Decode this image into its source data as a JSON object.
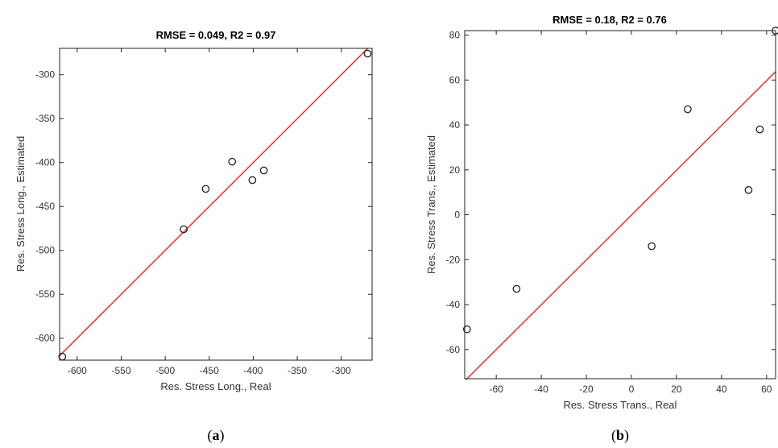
{
  "chart_data": [
    {
      "type": "scatter",
      "title": "RMSE = 0.049, R2 = 0.97",
      "xlabel": "Res. Stress Long., Real",
      "ylabel": "Res. Stress Long., Estimated",
      "xlim": [
        -620,
        -265
      ],
      "ylim": [
        -625,
        -270
      ],
      "xticks": [
        -600,
        -550,
        -500,
        -450,
        -400,
        -350,
        -300
      ],
      "yticks": [
        -600,
        -550,
        -500,
        -450,
        -400,
        -350,
        -300
      ],
      "points": [
        {
          "x": -617,
          "y": -621
        },
        {
          "x": -479,
          "y": -476
        },
        {
          "x": -454,
          "y": -430
        },
        {
          "x": -424,
          "y": -399
        },
        {
          "x": -401,
          "y": -420
        },
        {
          "x": -388,
          "y": -409
        },
        {
          "x": -270,
          "y": -276
        }
      ],
      "reference_line": {
        "x": [
          -620,
          -270
        ],
        "y": [
          -620,
          -270
        ],
        "color": "#ee3a3a"
      },
      "marker_color": "#222222",
      "grid": false,
      "caption_letter": "a"
    },
    {
      "type": "scatter",
      "title": "RMSE = 0.18, R2 = 0.76",
      "xlabel": "Res. Stress Trans., Real",
      "ylabel": "Res. Stress Trans., Estimated",
      "xlim": [
        -74,
        64
      ],
      "ylim": [
        -73,
        82
      ],
      "xticks": [
        -60,
        -40,
        -20,
        0,
        20,
        40,
        60
      ],
      "yticks": [
        -60,
        -40,
        -20,
        0,
        20,
        40,
        60,
        80
      ],
      "points": [
        {
          "x": -73,
          "y": -51
        },
        {
          "x": -51,
          "y": -33
        },
        {
          "x": 9,
          "y": -14
        },
        {
          "x": 25,
          "y": 47
        },
        {
          "x": 52,
          "y": 11
        },
        {
          "x": 57,
          "y": 38
        },
        {
          "x": 64,
          "y": 82
        }
      ],
      "reference_line": {
        "x": [
          -73.5,
          64
        ],
        "y": [
          -73.5,
          63.7
        ],
        "color": "#ee3a3a"
      },
      "marker_color": "#222222",
      "grid": false,
      "caption_letter": "b"
    }
  ]
}
